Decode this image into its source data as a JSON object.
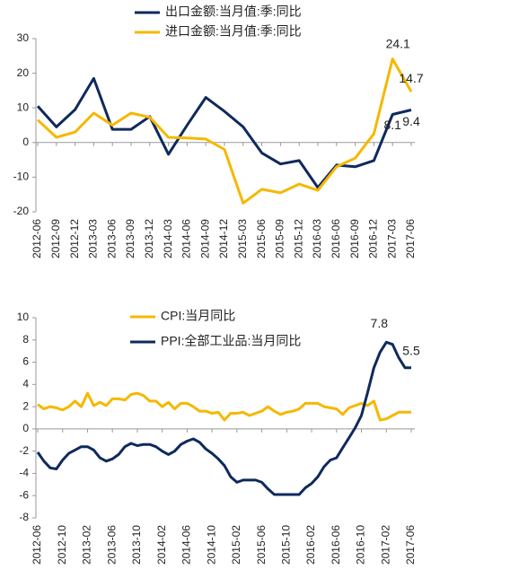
{
  "chart_data": [
    {
      "type": "line",
      "categories": [
        "2012-06",
        "2012-09",
        "2012-12",
        "2013-03",
        "2013-06",
        "2013-09",
        "2013-12",
        "2014-03",
        "2014-06",
        "2014-09",
        "2014-12",
        "2015-03",
        "2015-06",
        "2015-09",
        "2015-12",
        "2016-03",
        "2016-06",
        "2016-09",
        "2016-12",
        "2017-03",
        "2017-06"
      ],
      "series": [
        {
          "name": "出口金额:当月值:季:同比",
          "color": "#0e2a5c",
          "values": [
            10.5,
            4.5,
            9.5,
            18.5,
            3.8,
            3.8,
            7.5,
            -3.4,
            5,
            13,
            9,
            4.5,
            -3,
            -6.2,
            -5.2,
            -13,
            -6.5,
            -7,
            -5.2,
            8.1,
            9.4
          ]
        },
        {
          "name": "进口金额:当月值:季:同比",
          "color": "#f5b800",
          "values": [
            6.5,
            1.5,
            3,
            8.5,
            5,
            8.5,
            7.3,
            1.5,
            1.3,
            1,
            -2,
            -17.5,
            -13.5,
            -14.5,
            -12,
            -13.8,
            -7,
            -4.5,
            2.5,
            24.1,
            14.7
          ]
        }
      ],
      "ylim": [
        -20,
        30
      ],
      "yticks": [
        -20,
        -10,
        0,
        10,
        20,
        30
      ]
    },
    {
      "type": "line",
      "categories": [
        "2012-06",
        null,
        null,
        null,
        "2012-10",
        null,
        null,
        null,
        "2013-02",
        null,
        null,
        null,
        "2013-06",
        null,
        null,
        null,
        "2013-10",
        null,
        null,
        null,
        "2014-02",
        null,
        null,
        null,
        "2014-06",
        null,
        null,
        null,
        "2014-10",
        null,
        null,
        null,
        "2015-02",
        null,
        null,
        null,
        "2015-06",
        null,
        null,
        null,
        "2015-10",
        null,
        null,
        null,
        "2016-02",
        null,
        null,
        null,
        "2016-06",
        null,
        null,
        null,
        "2016-10",
        null,
        null,
        null,
        "2017-02",
        null,
        null,
        null,
        "2017-06"
      ],
      "series": [
        {
          "name": "CPI:当月同比",
          "color": "#f5b800",
          "values": [
            2.2,
            1.8,
            2.0,
            1.9,
            1.7,
            2.0,
            2.5,
            2.0,
            3.2,
            2.1,
            2.4,
            2.1,
            2.7,
            2.7,
            2.6,
            3.1,
            3.2,
            3.0,
            2.5,
            2.5,
            2.0,
            2.4,
            1.8,
            2.3,
            2.3,
            2.0,
            1.6,
            1.6,
            1.4,
            1.5,
            0.8,
            1.4,
            1.4,
            1.5,
            1.2,
            1.4,
            1.6,
            2.0,
            1.6,
            1.3,
            1.5,
            1.6,
            1.8,
            2.3,
            2.3,
            2.3,
            2.0,
            1.9,
            1.8,
            1.3,
            1.9,
            2.1,
            2.3,
            2.1,
            2.5,
            0.8,
            0.9,
            1.2,
            1.5,
            1.5,
            1.5
          ]
        },
        {
          "name": "PPI:全部工业品:当月同比",
          "color": "#0e2a5c",
          "values": [
            -2.1,
            -2.9,
            -3.5,
            -3.6,
            -2.8,
            -2.2,
            -1.9,
            -1.6,
            -1.6,
            -1.9,
            -2.6,
            -2.9,
            -2.7,
            -2.3,
            -1.6,
            -1.3,
            -1.5,
            -1.4,
            -1.4,
            -1.6,
            -2.0,
            -2.3,
            -2.0,
            -1.4,
            -1.1,
            -0.9,
            -1.2,
            -1.8,
            -2.2,
            -2.7,
            -3.3,
            -4.3,
            -4.8,
            -4.6,
            -4.6,
            -4.6,
            -4.8,
            -5.4,
            -5.9,
            -5.9,
            -5.9,
            -5.9,
            -5.9,
            -5.3,
            -4.9,
            -4.3,
            -3.4,
            -2.8,
            -2.6,
            -1.7,
            -0.8,
            0.1,
            1.2,
            3.3,
            5.5,
            6.9,
            7.8,
            7.6,
            6.4,
            5.5,
            5.5
          ]
        }
      ],
      "ylim": [
        -8,
        10
      ],
      "yticks": [
        -8,
        -6,
        -4,
        -2,
        0,
        2,
        4,
        6,
        8,
        10
      ]
    }
  ]
}
